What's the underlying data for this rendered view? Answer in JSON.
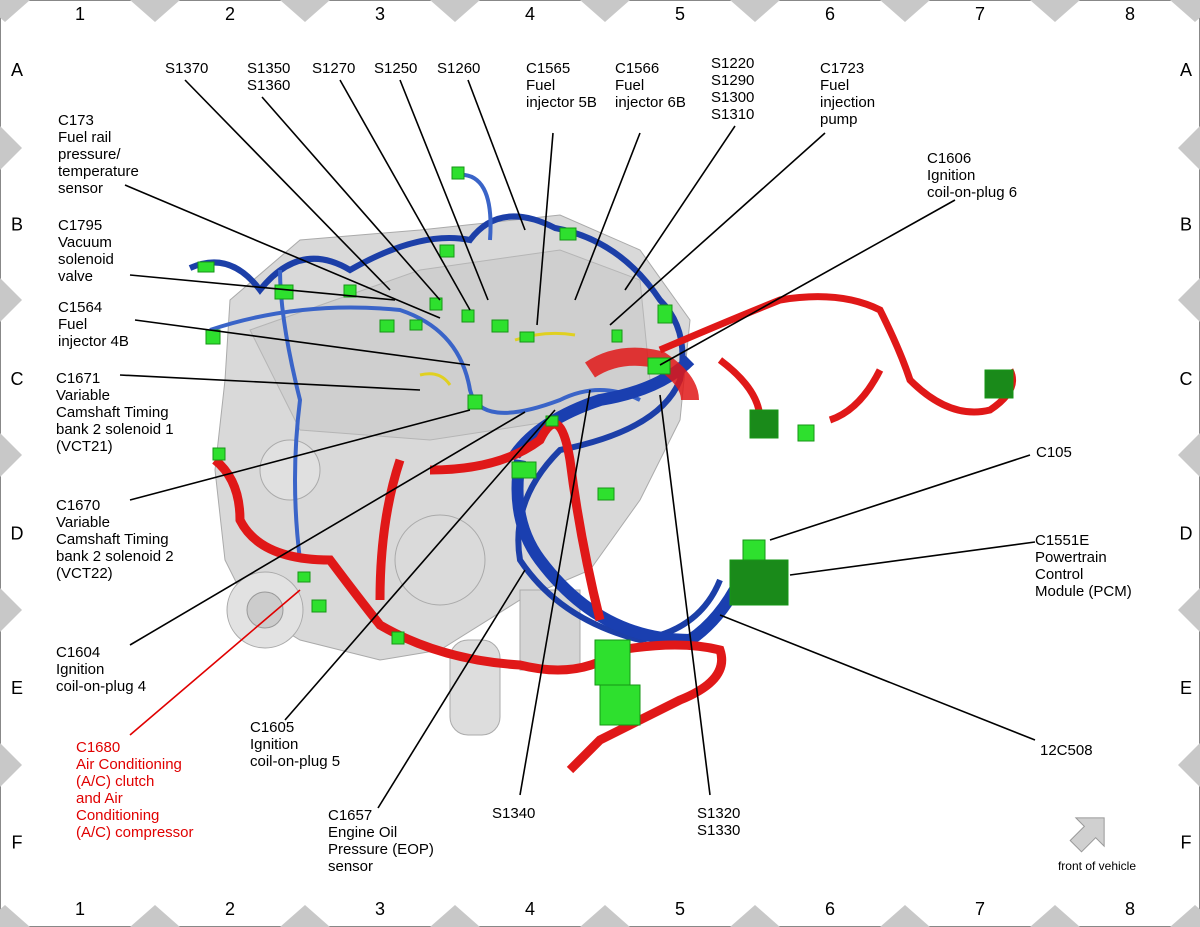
{
  "grid": {
    "columns": [
      "1",
      "2",
      "3",
      "4",
      "5",
      "6",
      "7",
      "8"
    ],
    "rows": [
      "A",
      "B",
      "C",
      "D",
      "E",
      "F"
    ]
  },
  "labels": [
    {
      "lines": [
        "S1370"
      ]
    },
    {
      "lines": [
        "S1350",
        "S1360"
      ]
    },
    {
      "lines": [
        "S1270"
      ]
    },
    {
      "lines": [
        "S1250"
      ]
    },
    {
      "lines": [
        "S1260"
      ]
    },
    {
      "lines": [
        "C1565",
        "Fuel",
        "injector 5B"
      ]
    },
    {
      "lines": [
        "C1566",
        "Fuel",
        "injector 6B"
      ]
    },
    {
      "lines": [
        "S1220",
        "S1290",
        "S1300",
        "S1310"
      ]
    },
    {
      "lines": [
        "C1723",
        "Fuel",
        "injection",
        "pump"
      ]
    },
    {
      "lines": [
        "C1606",
        "Ignition",
        "coil-on-plug 6"
      ]
    },
    {
      "lines": [
        "C173",
        "Fuel rail",
        "pressure/",
        "temperature",
        "sensor"
      ]
    },
    {
      "lines": [
        "C1795",
        "Vacuum",
        "solenoid",
        "valve"
      ]
    },
    {
      "lines": [
        "C1564",
        "Fuel",
        "injector 4B"
      ]
    },
    {
      "lines": [
        "C1671",
        "Variable",
        "Camshaft Timing",
        "bank 2 solenoid 1",
        "(VCT21)"
      ]
    },
    {
      "lines": [
        "C1670",
        "Variable",
        "Camshaft Timing",
        "bank 2 solenoid 2",
        "(VCT22)"
      ]
    },
    {
      "lines": [
        "C1604",
        "Ignition",
        "coil-on-plug 4"
      ]
    },
    {
      "lines": [
        "C1680",
        "Air Conditioning",
        "(A/C) clutch",
        "and Air",
        "Conditioning",
        "(A/C) compressor"
      ],
      "color": "#e00000"
    },
    {
      "lines": [
        "C1605",
        "Ignition",
        "coil-on-plug 5"
      ]
    },
    {
      "lines": [
        "C1657",
        "Engine Oil",
        "Pressure (EOP)",
        "sensor"
      ]
    },
    {
      "lines": [
        "S1340"
      ]
    },
    {
      "lines": [
        "S1320",
        "S1330"
      ]
    },
    {
      "lines": [
        "12C508"
      ]
    },
    {
      "lines": [
        "C1551E",
        "Powertrain",
        "Control",
        "Module (PCM)"
      ]
    },
    {
      "lines": [
        "C105"
      ]
    }
  ],
  "orientation": {
    "label": "front of vehicle"
  }
}
